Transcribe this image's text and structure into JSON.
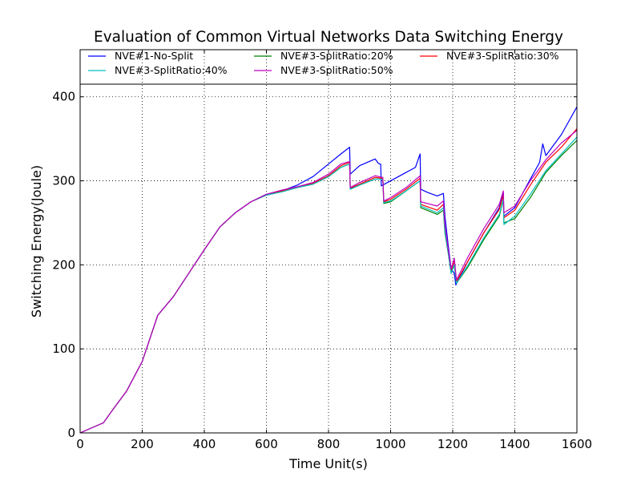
{
  "chart_data": {
    "type": "line",
    "title": "Evaluation of Common Virtual Networks Data Switching Energy",
    "xlabel": "Time Unit(s)",
    "ylabel": "Switching Energy(Joule)",
    "xlim": [
      0,
      1600
    ],
    "ylim": [
      0,
      415
    ],
    "xticks": [
      "0",
      "200",
      "400",
      "600",
      "800",
      "1000",
      "1200",
      "1400",
      "1600"
    ],
    "yticks": [
      "0",
      "100",
      "200",
      "300",
      "400"
    ],
    "grid": true,
    "legend_position": "top",
    "series": [
      {
        "name": "NVE#1-No-Split",
        "color": "#0000ff",
        "points": [
          [
            0,
            0
          ],
          [
            75,
            12
          ],
          [
            100,
            25
          ],
          [
            150,
            50
          ],
          [
            200,
            85
          ],
          [
            250,
            140
          ],
          [
            300,
            162
          ],
          [
            350,
            190
          ],
          [
            400,
            218
          ],
          [
            450,
            245
          ],
          [
            500,
            262
          ],
          [
            550,
            275
          ],
          [
            600,
            284
          ],
          [
            650,
            288
          ],
          [
            700,
            295
          ],
          [
            750,
            305
          ],
          [
            800,
            320
          ],
          [
            840,
            332
          ],
          [
            868,
            340
          ],
          [
            870,
            308
          ],
          [
            900,
            318
          ],
          [
            950,
            326
          ],
          [
            960,
            321
          ],
          [
            965,
            320
          ],
          [
            968,
            320
          ],
          [
            970,
            294
          ],
          [
            1000,
            300
          ],
          [
            1050,
            310
          ],
          [
            1080,
            316
          ],
          [
            1095,
            332
          ],
          [
            1097,
            290
          ],
          [
            1120,
            286
          ],
          [
            1150,
            282
          ],
          [
            1170,
            285
          ],
          [
            1175,
            258
          ],
          [
            1185,
            225
          ],
          [
            1195,
            195
          ],
          [
            1205,
            190
          ],
          [
            1210,
            176
          ],
          [
            1250,
            205
          ],
          [
            1300,
            238
          ],
          [
            1350,
            268
          ],
          [
            1363,
            286
          ],
          [
            1365,
            258
          ],
          [
            1400,
            268
          ],
          [
            1450,
            302
          ],
          [
            1480,
            322
          ],
          [
            1490,
            344
          ],
          [
            1500,
            330
          ],
          [
            1550,
            355
          ],
          [
            1600,
            388
          ]
        ]
      },
      {
        "name": "NVE#3-SplitRatio:20%",
        "color": "#008000",
        "points": [
          [
            0,
            0
          ],
          [
            75,
            12
          ],
          [
            100,
            25
          ],
          [
            150,
            50
          ],
          [
            200,
            85
          ],
          [
            250,
            140
          ],
          [
            300,
            162
          ],
          [
            350,
            190
          ],
          [
            400,
            218
          ],
          [
            450,
            245
          ],
          [
            500,
            262
          ],
          [
            550,
            275
          ],
          [
            600,
            283
          ],
          [
            650,
            287
          ],
          [
            700,
            292
          ],
          [
            750,
            296
          ],
          [
            800,
            305
          ],
          [
            840,
            316
          ],
          [
            868,
            320
          ],
          [
            870,
            290
          ],
          [
            900,
            295
          ],
          [
            950,
            302
          ],
          [
            975,
            302
          ],
          [
            978,
            273
          ],
          [
            1000,
            275
          ],
          [
            1050,
            288
          ],
          [
            1095,
            300
          ],
          [
            1097,
            268
          ],
          [
            1150,
            260
          ],
          [
            1170,
            265
          ],
          [
            1175,
            238
          ],
          [
            1185,
            215
          ],
          [
            1195,
            190
          ],
          [
            1205,
            200
          ],
          [
            1212,
            178
          ],
          [
            1250,
            198
          ],
          [
            1300,
            230
          ],
          [
            1350,
            258
          ],
          [
            1363,
            278
          ],
          [
            1365,
            250
          ],
          [
            1400,
            255
          ],
          [
            1450,
            280
          ],
          [
            1500,
            310
          ],
          [
            1550,
            330
          ],
          [
            1600,
            348
          ]
        ]
      },
      {
        "name": "NVE#3-SplitRatio:30%",
        "color": "#ff0000",
        "points": [
          [
            0,
            0
          ],
          [
            75,
            12
          ],
          [
            100,
            25
          ],
          [
            150,
            50
          ],
          [
            200,
            85
          ],
          [
            250,
            140
          ],
          [
            300,
            162
          ],
          [
            350,
            190
          ],
          [
            400,
            218
          ],
          [
            450,
            245
          ],
          [
            500,
            262
          ],
          [
            550,
            275
          ],
          [
            600,
            283
          ],
          [
            650,
            288
          ],
          [
            700,
            292
          ],
          [
            750,
            297
          ],
          [
            800,
            306
          ],
          [
            840,
            318
          ],
          [
            868,
            322
          ],
          [
            870,
            291
          ],
          [
            900,
            296
          ],
          [
            950,
            304
          ],
          [
            975,
            303
          ],
          [
            978,
            275
          ],
          [
            1000,
            278
          ],
          [
            1050,
            290
          ],
          [
            1095,
            303
          ],
          [
            1097,
            272
          ],
          [
            1150,
            265
          ],
          [
            1170,
            272
          ],
          [
            1175,
            245
          ],
          [
            1185,
            218
          ],
          [
            1195,
            192
          ],
          [
            1205,
            205
          ],
          [
            1212,
            180
          ],
          [
            1250,
            205
          ],
          [
            1300,
            238
          ],
          [
            1350,
            266
          ],
          [
            1363,
            283
          ],
          [
            1365,
            256
          ],
          [
            1400,
            265
          ],
          [
            1450,
            295
          ],
          [
            1500,
            322
          ],
          [
            1550,
            340
          ],
          [
            1600,
            362
          ]
        ]
      },
      {
        "name": "NVE#3-SplitRatio:40%",
        "color": "#00bfbf",
        "points": [
          [
            0,
            0
          ],
          [
            75,
            12
          ],
          [
            100,
            25
          ],
          [
            150,
            50
          ],
          [
            200,
            85
          ],
          [
            250,
            140
          ],
          [
            300,
            162
          ],
          [
            350,
            190
          ],
          [
            400,
            218
          ],
          [
            450,
            245
          ],
          [
            500,
            262
          ],
          [
            550,
            275
          ],
          [
            600,
            283
          ],
          [
            650,
            287
          ],
          [
            700,
            292
          ],
          [
            750,
            296
          ],
          [
            800,
            305
          ],
          [
            840,
            316
          ],
          [
            868,
            320
          ],
          [
            870,
            290
          ],
          [
            900,
            295
          ],
          [
            950,
            302
          ],
          [
            975,
            302
          ],
          [
            978,
            274
          ],
          [
            1000,
            276
          ],
          [
            1050,
            288
          ],
          [
            1095,
            300
          ],
          [
            1097,
            270
          ],
          [
            1150,
            262
          ],
          [
            1170,
            268
          ],
          [
            1175,
            240
          ],
          [
            1185,
            216
          ],
          [
            1195,
            190
          ],
          [
            1205,
            200
          ],
          [
            1212,
            178
          ],
          [
            1250,
            200
          ],
          [
            1300,
            232
          ],
          [
            1350,
            260
          ],
          [
            1363,
            278
          ],
          [
            1365,
            248
          ],
          [
            1400,
            258
          ],
          [
            1450,
            284
          ],
          [
            1500,
            312
          ],
          [
            1550,
            332
          ],
          [
            1600,
            352
          ]
        ]
      },
      {
        "name": "NVE#3-SplitRatio:50%",
        "color": "#bf00bf",
        "points": [
          [
            0,
            0
          ],
          [
            75,
            12
          ],
          [
            100,
            25
          ],
          [
            150,
            50
          ],
          [
            200,
            85
          ],
          [
            250,
            140
          ],
          [
            300,
            162
          ],
          [
            350,
            190
          ],
          [
            400,
            218
          ],
          [
            450,
            245
          ],
          [
            500,
            262
          ],
          [
            550,
            275
          ],
          [
            600,
            284
          ],
          [
            650,
            289
          ],
          [
            700,
            293
          ],
          [
            750,
            298
          ],
          [
            800,
            308
          ],
          [
            840,
            320
          ],
          [
            868,
            323
          ],
          [
            870,
            292
          ],
          [
            900,
            298
          ],
          [
            950,
            306
          ],
          [
            975,
            304
          ],
          [
            978,
            276
          ],
          [
            1000,
            280
          ],
          [
            1050,
            292
          ],
          [
            1095,
            306
          ],
          [
            1097,
            275
          ],
          [
            1150,
            270
          ],
          [
            1170,
            276
          ],
          [
            1175,
            248
          ],
          [
            1185,
            220
          ],
          [
            1195,
            195
          ],
          [
            1205,
            208
          ],
          [
            1212,
            182
          ],
          [
            1250,
            210
          ],
          [
            1300,
            243
          ],
          [
            1350,
            272
          ],
          [
            1363,
            288
          ],
          [
            1365,
            262
          ],
          [
            1400,
            270
          ],
          [
            1450,
            300
          ],
          [
            1500,
            325
          ],
          [
            1550,
            345
          ],
          [
            1600,
            360
          ]
        ]
      }
    ]
  }
}
